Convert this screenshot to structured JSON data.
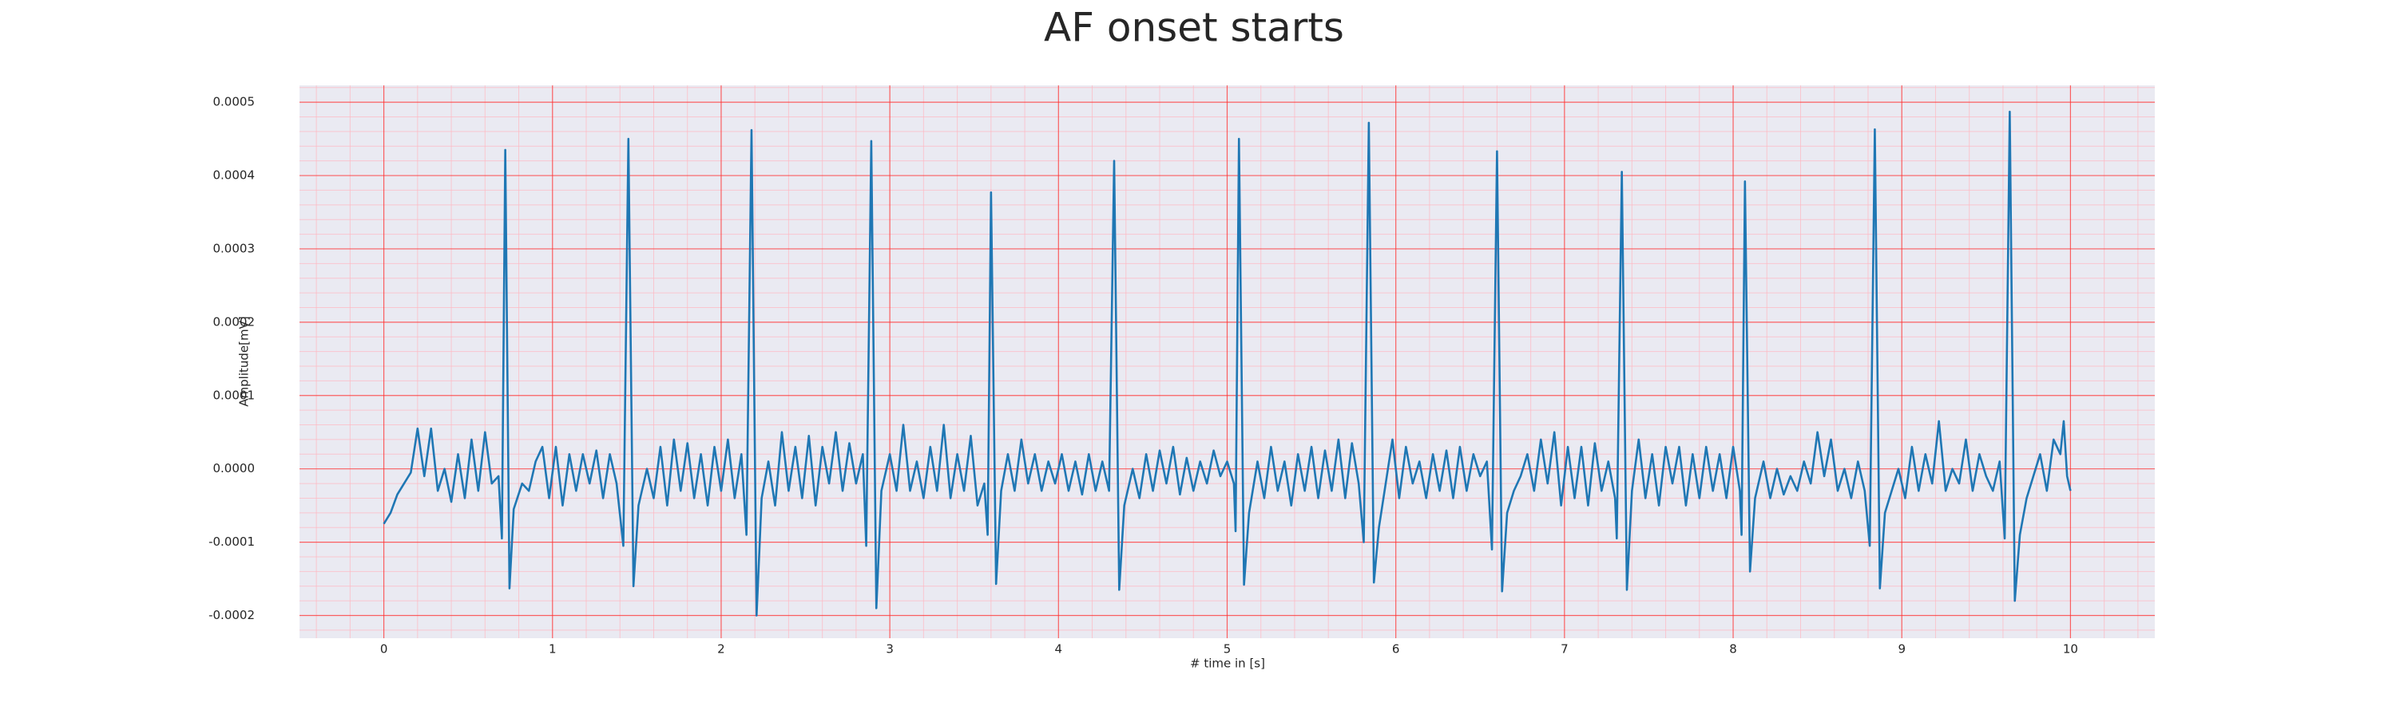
{
  "chart_data": {
    "type": "line",
    "title": "AF onset starts",
    "xlabel": "# time in [s]",
    "ylabel": "Amplitude[mV]",
    "xlim": [
      -0.5,
      10.5
    ],
    "ylim": [
      -0.000231,
      0.000523
    ],
    "xticks": [
      0,
      1,
      2,
      3,
      4,
      5,
      6,
      7,
      8,
      9,
      10
    ],
    "yticks": [
      -0.0002,
      -0.0001,
      {
        "value": 0,
        "label": "0.0000"
      },
      0.0001,
      0.0002,
      0.0003,
      0.0004,
      0.0005
    ],
    "grid": true,
    "minor_grid": true,
    "x": [
      0,
      0.04,
      0.08,
      0.12,
      0.16,
      0.2,
      0.24,
      0.28,
      0.32,
      0.36,
      0.4,
      0.44,
      0.48,
      0.52,
      0.56,
      0.6,
      0.64,
      0.68,
      0.7,
      0.72,
      0.745,
      0.77,
      0.82,
      0.86,
      0.9,
      0.94,
      0.98,
      1.02,
      1.06,
      1.1,
      1.14,
      1.18,
      1.22,
      1.26,
      1.3,
      1.34,
      1.38,
      1.42,
      1.45,
      1.48,
      1.51,
      1.56,
      1.6,
      1.64,
      1.68,
      1.72,
      1.76,
      1.8,
      1.84,
      1.88,
      1.92,
      1.96,
      2.0,
      2.04,
      2.08,
      2.12,
      2.15,
      2.18,
      2.21,
      2.24,
      2.28,
      2.32,
      2.36,
      2.4,
      2.44,
      2.48,
      2.52,
      2.56,
      2.6,
      2.64,
      2.68,
      2.72,
      2.76,
      2.8,
      2.84,
      2.86,
      2.89,
      2.92,
      2.95,
      3.0,
      3.04,
      3.08,
      3.12,
      3.16,
      3.2,
      3.24,
      3.28,
      3.32,
      3.36,
      3.4,
      3.44,
      3.48,
      3.52,
      3.56,
      3.58,
      3.6,
      3.63,
      3.66,
      3.7,
      3.74,
      3.78,
      3.82,
      3.86,
      3.9,
      3.94,
      3.98,
      4.02,
      4.06,
      4.1,
      4.14,
      4.18,
      4.22,
      4.26,
      4.3,
      4.33,
      4.36,
      4.39,
      4.44,
      4.48,
      4.52,
      4.56,
      4.6,
      4.64,
      4.68,
      4.72,
      4.76,
      4.8,
      4.84,
      4.88,
      4.92,
      4.96,
      5.0,
      5.04,
      5.05,
      5.07,
      5.1,
      5.13,
      5.18,
      5.22,
      5.26,
      5.3,
      5.34,
      5.38,
      5.42,
      5.46,
      5.5,
      5.54,
      5.58,
      5.62,
      5.66,
      5.7,
      5.74,
      5.78,
      5.81,
      5.84,
      5.87,
      5.9,
      5.94,
      5.98,
      6.02,
      6.06,
      6.1,
      6.14,
      6.18,
      6.22,
      6.26,
      6.3,
      6.34,
      6.38,
      6.42,
      6.46,
      6.5,
      6.54,
      6.57,
      6.6,
      6.63,
      6.66,
      6.7,
      6.74,
      6.78,
      6.82,
      6.86,
      6.9,
      6.94,
      6.98,
      7.02,
      7.06,
      7.1,
      7.14,
      7.18,
      7.22,
      7.26,
      7.3,
      7.31,
      7.34,
      7.37,
      7.4,
      7.44,
      7.48,
      7.52,
      7.56,
      7.6,
      7.64,
      7.68,
      7.72,
      7.76,
      7.8,
      7.84,
      7.88,
      7.92,
      7.96,
      8.0,
      8.04,
      8.05,
      8.07,
      8.1,
      8.13,
      8.18,
      8.22,
      8.26,
      8.3,
      8.34,
      8.38,
      8.42,
      8.46,
      8.5,
      8.54,
      8.58,
      8.62,
      8.66,
      8.7,
      8.74,
      8.78,
      8.81,
      8.84,
      8.87,
      8.9,
      8.94,
      8.98,
      9.02,
      9.06,
      9.1,
      9.14,
      9.18,
      9.22,
      9.26,
      9.3,
      9.34,
      9.38,
      9.42,
      9.46,
      9.5,
      9.54,
      9.58,
      9.61,
      9.64,
      9.67,
      9.7,
      9.74,
      9.78,
      9.82,
      9.86,
      9.9,
      9.94,
      9.96,
      9.98,
      10.0
    ],
    "series": [
      {
        "color": "#1f77b4",
        "values": [
          -7.5e-05,
          -6e-05,
          -3.5e-05,
          -2e-05,
          -5e-06,
          5.5e-05,
          -1e-05,
          5.5e-05,
          -3e-05,
          0,
          -4.5e-05,
          2e-05,
          -4e-05,
          4e-05,
          -3e-05,
          5e-05,
          -2e-05,
          -1e-05,
          -9.5e-05,
          0.000435,
          -0.000163,
          -5.5e-05,
          -2e-05,
          -3e-05,
          1e-05,
          3e-05,
          -4e-05,
          3e-05,
          -5e-05,
          2e-05,
          -3e-05,
          2e-05,
          -2e-05,
          2.5e-05,
          -4e-05,
          2e-05,
          -2e-05,
          -0.000105,
          0.00045,
          -0.00016,
          -5e-05,
          0,
          -4e-05,
          3e-05,
          -5e-05,
          4e-05,
          -3e-05,
          3.5e-05,
          -4e-05,
          2e-05,
          -5e-05,
          3e-05,
          -3e-05,
          4e-05,
          -4e-05,
          2e-05,
          -9e-05,
          0.000462,
          -0.0002,
          -4e-05,
          1e-05,
          -5e-05,
          5e-05,
          -3e-05,
          3e-05,
          -4e-05,
          4.5e-05,
          -5e-05,
          3e-05,
          -2e-05,
          5e-05,
          -3e-05,
          3.5e-05,
          -2e-05,
          2e-05,
          -0.000105,
          0.000447,
          -0.00019,
          -3e-05,
          2e-05,
          -3e-05,
          6e-05,
          -3e-05,
          1e-05,
          -4e-05,
          3e-05,
          -3e-05,
          6e-05,
          -4e-05,
          2e-05,
          -3e-05,
          4.5e-05,
          -5e-05,
          -2e-05,
          -9e-05,
          0.000377,
          -0.000157,
          -3e-05,
          2e-05,
          -3e-05,
          4e-05,
          -2e-05,
          2e-05,
          -3e-05,
          1e-05,
          -2e-05,
          2e-05,
          -3e-05,
          1e-05,
          -3.5e-05,
          2e-05,
          -3e-05,
          1e-05,
          -3e-05,
          0.00042,
          -0.000165,
          -5e-05,
          0,
          -4e-05,
          2e-05,
          -3e-05,
          2.5e-05,
          -2e-05,
          3e-05,
          -3.5e-05,
          1.5e-05,
          -3e-05,
          1e-05,
          -2e-05,
          2.5e-05,
          -1e-05,
          1e-05,
          -2e-05,
          -8.5e-05,
          0.00045,
          -0.000158,
          -6e-05,
          1e-05,
          -4e-05,
          3e-05,
          -3e-05,
          1e-05,
          -5e-05,
          2e-05,
          -3e-05,
          3e-05,
          -4e-05,
          2.5e-05,
          -3e-05,
          4e-05,
          -4e-05,
          3.5e-05,
          -2e-05,
          -0.0001,
          0.000472,
          -0.000155,
          -8e-05,
          -2e-05,
          4e-05,
          -4e-05,
          3e-05,
          -2e-05,
          1e-05,
          -4e-05,
          2e-05,
          -3e-05,
          2.5e-05,
          -4e-05,
          3e-05,
          -3e-05,
          2e-05,
          -1e-05,
          1e-05,
          -0.00011,
          0.000433,
          -0.000167,
          -6e-05,
          -3e-05,
          -1e-05,
          2e-05,
          -3e-05,
          4e-05,
          -2e-05,
          5e-05,
          -5e-05,
          3e-05,
          -4e-05,
          3e-05,
          -5e-05,
          3.5e-05,
          -3e-05,
          1e-05,
          -4e-05,
          -9.5e-05,
          0.000405,
          -0.000165,
          -3e-05,
          4e-05,
          -4e-05,
          2e-05,
          -5e-05,
          3e-05,
          -2e-05,
          3e-05,
          -5e-05,
          2e-05,
          -4e-05,
          3e-05,
          -3e-05,
          2e-05,
          -4e-05,
          3e-05,
          -3e-05,
          -9e-05,
          0.000392,
          -0.00014,
          -4e-05,
          1e-05,
          -4e-05,
          0,
          -3.5e-05,
          -1e-05,
          -3e-05,
          1e-05,
          -2e-05,
          5e-05,
          -1e-05,
          4e-05,
          -3e-05,
          0,
          -4e-05,
          1e-05,
          -3e-05,
          -0.000105,
          0.000463,
          -0.000163,
          -6e-05,
          -3e-05,
          0,
          -4e-05,
          3e-05,
          -3e-05,
          2e-05,
          -2e-05,
          6.5e-05,
          -3e-05,
          0,
          -2e-05,
          4e-05,
          -3e-05,
          2e-05,
          -1e-05,
          -3e-05,
          1e-05,
          -9.5e-05,
          0.000487,
          -0.00018,
          -9e-05,
          -4e-05,
          -1e-05,
          2e-05,
          -3e-05,
          4e-05,
          2e-05,
          6.5e-05,
          -1e-05,
          -3e-05
        ]
      }
    ]
  }
}
